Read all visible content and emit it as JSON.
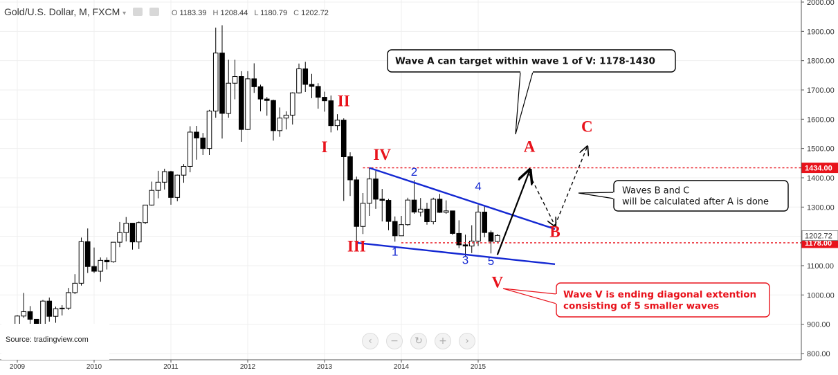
{
  "header": {
    "symbol": "Gold/U.S. Dollar, M, FXCM",
    "open_label": "O",
    "open": "1183.39",
    "high_label": "H",
    "high": "1208.44",
    "low_label": "L",
    "low": "1180.79",
    "close_label": "C",
    "close": "1202.72"
  },
  "source": "Source: tradingview.com",
  "nav_buttons": [
    "chevron-left-icon",
    "zoom-out-icon",
    "reset-icon",
    "zoom-in-icon",
    "chevron-right-icon"
  ],
  "colors": {
    "up": "#ffffff",
    "down": "#000000",
    "trendline": "#1428d2",
    "level": "#e8121b",
    "wave_label": "#e8121b",
    "sub_wave_label": "#1428d2"
  },
  "chart_data": {
    "type": "candlestick",
    "xlabel": "",
    "ylabel": "",
    "xlim": [
      "2009-01",
      "2016-10"
    ],
    "ylim": [
      760,
      2010
    ],
    "x_ticks": [
      "2009",
      "2010",
      "2011",
      "2012",
      "2013",
      "2014",
      "2015"
    ],
    "y_ticks": [
      "2000.00",
      "1900.00",
      "1800.00",
      "1700.00",
      "1600.00",
      "1500.00",
      "1400.00",
      "1300.00",
      "1200.00",
      "1100.00",
      "1000.00",
      "900.00",
      "800.00"
    ],
    "price_tags": [
      {
        "value": 1434,
        "label": "1434.00",
        "style": "red"
      },
      {
        "value": 1178,
        "label": "1178.00",
        "style": "red"
      },
      {
        "value": 1202.72,
        "label": "1202.72",
        "style": "plain"
      }
    ],
    "candles": [
      {
        "date": "2009-01",
        "o": 884,
        "h": 931,
        "l": 800,
        "c": 928
      },
      {
        "date": "2009-02",
        "o": 928,
        "h": 1007,
        "l": 922,
        "c": 943
      },
      {
        "date": "2009-03",
        "o": 943,
        "h": 962,
        "l": 865,
        "c": 917
      },
      {
        "date": "2009-04",
        "o": 917,
        "h": 918,
        "l": 863,
        "c": 885
      },
      {
        "date": "2009-05",
        "o": 885,
        "h": 983,
        "l": 881,
        "c": 979
      },
      {
        "date": "2009-06",
        "o": 979,
        "h": 991,
        "l": 909,
        "c": 927
      },
      {
        "date": "2009-07",
        "o": 927,
        "h": 960,
        "l": 905,
        "c": 953
      },
      {
        "date": "2009-08",
        "o": 953,
        "h": 965,
        "l": 930,
        "c": 955
      },
      {
        "date": "2009-09",
        "o": 955,
        "h": 1024,
        "l": 949,
        "c": 1008
      },
      {
        "date": "2009-10",
        "o": 1008,
        "h": 1071,
        "l": 1003,
        "c": 1040
      },
      {
        "date": "2009-11",
        "o": 1040,
        "h": 1196,
        "l": 1032,
        "c": 1182
      },
      {
        "date": "2009-12",
        "o": 1182,
        "h": 1227,
        "l": 1075,
        "c": 1097
      },
      {
        "date": "2010-01",
        "o": 1097,
        "h": 1162,
        "l": 1075,
        "c": 1081
      },
      {
        "date": "2010-02",
        "o": 1081,
        "h": 1128,
        "l": 1045,
        "c": 1118
      },
      {
        "date": "2010-03",
        "o": 1118,
        "h": 1128,
        "l": 1087,
        "c": 1113
      },
      {
        "date": "2010-04",
        "o": 1113,
        "h": 1180,
        "l": 1110,
        "c": 1180
      },
      {
        "date": "2010-05",
        "o": 1180,
        "h": 1249,
        "l": 1163,
        "c": 1213
      },
      {
        "date": "2010-06",
        "o": 1213,
        "h": 1266,
        "l": 1183,
        "c": 1245
      },
      {
        "date": "2010-07",
        "o": 1245,
        "h": 1245,
        "l": 1155,
        "c": 1181
      },
      {
        "date": "2010-08",
        "o": 1181,
        "h": 1251,
        "l": 1157,
        "c": 1247
      },
      {
        "date": "2010-09",
        "o": 1247,
        "h": 1307,
        "l": 1242,
        "c": 1307
      },
      {
        "date": "2010-10",
        "o": 1307,
        "h": 1387,
        "l": 1305,
        "c": 1357
      },
      {
        "date": "2010-11",
        "o": 1357,
        "h": 1424,
        "l": 1330,
        "c": 1385
      },
      {
        "date": "2010-12",
        "o": 1385,
        "h": 1431,
        "l": 1360,
        "c": 1421
      },
      {
        "date": "2011-01",
        "o": 1421,
        "h": 1424,
        "l": 1308,
        "c": 1333
      },
      {
        "date": "2011-02",
        "o": 1333,
        "h": 1411,
        "l": 1320,
        "c": 1409
      },
      {
        "date": "2011-03",
        "o": 1409,
        "h": 1447,
        "l": 1383,
        "c": 1439
      },
      {
        "date": "2011-04",
        "o": 1439,
        "h": 1576,
        "l": 1419,
        "c": 1556
      },
      {
        "date": "2011-05",
        "o": 1556,
        "h": 1577,
        "l": 1462,
        "c": 1536
      },
      {
        "date": "2011-06",
        "o": 1536,
        "h": 1553,
        "l": 1478,
        "c": 1500
      },
      {
        "date": "2011-07",
        "o": 1500,
        "h": 1632,
        "l": 1478,
        "c": 1628
      },
      {
        "date": "2011-08",
        "o": 1628,
        "h": 1913,
        "l": 1605,
        "c": 1826
      },
      {
        "date": "2011-09",
        "o": 1826,
        "h": 1921,
        "l": 1534,
        "c": 1620
      },
      {
        "date": "2011-10",
        "o": 1620,
        "h": 1803,
        "l": 1605,
        "c": 1723
      },
      {
        "date": "2011-11",
        "o": 1723,
        "h": 1803,
        "l": 1668,
        "c": 1746
      },
      {
        "date": "2011-12",
        "o": 1746,
        "h": 1764,
        "l": 1523,
        "c": 1565
      },
      {
        "date": "2012-01",
        "o": 1565,
        "h": 1764,
        "l": 1563,
        "c": 1738
      },
      {
        "date": "2012-02",
        "o": 1738,
        "h": 1791,
        "l": 1690,
        "c": 1711
      },
      {
        "date": "2012-03",
        "o": 1711,
        "h": 1718,
        "l": 1627,
        "c": 1669
      },
      {
        "date": "2012-04",
        "o": 1669,
        "h": 1676,
        "l": 1612,
        "c": 1664
      },
      {
        "date": "2012-05",
        "o": 1664,
        "h": 1667,
        "l": 1527,
        "c": 1561
      },
      {
        "date": "2012-06",
        "o": 1561,
        "h": 1640,
        "l": 1540,
        "c": 1604
      },
      {
        "date": "2012-07",
        "o": 1604,
        "h": 1627,
        "l": 1565,
        "c": 1614
      },
      {
        "date": "2012-08",
        "o": 1614,
        "h": 1692,
        "l": 1582,
        "c": 1690
      },
      {
        "date": "2012-09",
        "o": 1690,
        "h": 1790,
        "l": 1688,
        "c": 1772
      },
      {
        "date": "2012-10",
        "o": 1772,
        "h": 1796,
        "l": 1693,
        "c": 1719
      },
      {
        "date": "2012-11",
        "o": 1719,
        "h": 1755,
        "l": 1672,
        "c": 1712
      },
      {
        "date": "2012-12",
        "o": 1712,
        "h": 1723,
        "l": 1636,
        "c": 1675
      },
      {
        "date": "2013-01",
        "o": 1675,
        "h": 1694,
        "l": 1626,
        "c": 1663
      },
      {
        "date": "2013-02",
        "o": 1663,
        "h": 1681,
        "l": 1555,
        "c": 1578
      },
      {
        "date": "2013-03",
        "o": 1578,
        "h": 1617,
        "l": 1562,
        "c": 1597
      },
      {
        "date": "2013-04",
        "o": 1597,
        "h": 1603,
        "l": 1321,
        "c": 1472
      },
      {
        "date": "2013-05",
        "o": 1472,
        "h": 1487,
        "l": 1338,
        "c": 1393
      },
      {
        "date": "2013-06",
        "o": 1393,
        "h": 1404,
        "l": 1180,
        "c": 1234
      },
      {
        "date": "2013-07",
        "o": 1234,
        "h": 1348,
        "l": 1208,
        "c": 1313
      },
      {
        "date": "2013-08",
        "o": 1313,
        "h": 1434,
        "l": 1270,
        "c": 1396
      },
      {
        "date": "2013-09",
        "o": 1396,
        "h": 1424,
        "l": 1294,
        "c": 1327
      },
      {
        "date": "2013-10",
        "o": 1327,
        "h": 1362,
        "l": 1251,
        "c": 1323
      },
      {
        "date": "2013-11",
        "o": 1323,
        "h": 1328,
        "l": 1221,
        "c": 1251
      },
      {
        "date": "2013-12",
        "o": 1251,
        "h": 1268,
        "l": 1182,
        "c": 1202
      },
      {
        "date": "2014-01",
        "o": 1202,
        "h": 1270,
        "l": 1202,
        "c": 1240
      },
      {
        "date": "2014-02",
        "o": 1240,
        "h": 1332,
        "l": 1236,
        "c": 1324
      },
      {
        "date": "2014-03",
        "o": 1324,
        "h": 1392,
        "l": 1277,
        "c": 1283
      },
      {
        "date": "2014-04",
        "o": 1283,
        "h": 1331,
        "l": 1268,
        "c": 1293
      },
      {
        "date": "2014-05",
        "o": 1293,
        "h": 1315,
        "l": 1240,
        "c": 1250
      },
      {
        "date": "2014-06",
        "o": 1250,
        "h": 1332,
        "l": 1241,
        "c": 1327
      },
      {
        "date": "2014-07",
        "o": 1327,
        "h": 1345,
        "l": 1280,
        "c": 1282
      },
      {
        "date": "2014-08",
        "o": 1282,
        "h": 1323,
        "l": 1277,
        "c": 1287
      },
      {
        "date": "2014-09",
        "o": 1287,
        "h": 1287,
        "l": 1205,
        "c": 1210
      },
      {
        "date": "2014-10",
        "o": 1210,
        "h": 1255,
        "l": 1160,
        "c": 1171
      },
      {
        "date": "2014-11",
        "o": 1171,
        "h": 1206,
        "l": 1131,
        "c": 1167
      },
      {
        "date": "2014-12",
        "o": 1167,
        "h": 1238,
        "l": 1143,
        "c": 1184
      },
      {
        "date": "2015-01",
        "o": 1184,
        "h": 1307,
        "l": 1167,
        "c": 1283
      },
      {
        "date": "2015-02",
        "o": 1283,
        "h": 1306,
        "l": 1197,
        "c": 1213
      },
      {
        "date": "2015-03",
        "o": 1213,
        "h": 1220,
        "l": 1142,
        "c": 1183
      },
      {
        "date": "2015-04",
        "o": 1183,
        "h": 1208,
        "l": 1181,
        "c": 1203
      }
    ],
    "trendlines": [
      {
        "from": [
          "2013-08",
          1434
        ],
        "to": [
          "2016-01",
          1225
        ],
        "color": "trendline",
        "style": "solid"
      },
      {
        "from": [
          "2013-06",
          1178
        ],
        "to": [
          "2016-01",
          1105
        ],
        "color": "trendline",
        "style": "solid"
      }
    ],
    "horizontal_levels": [
      {
        "value": 1434,
        "from": "2013-07"
      },
      {
        "value": 1178,
        "from": "2014-01"
      }
    ],
    "projection_paths": [
      {
        "points": [
          [
            "2015-04",
            1137
          ],
          [
            "2015-09",
            1422
          ]
        ],
        "style": "solid",
        "arrow": true
      },
      {
        "points": [
          [
            "2015-09",
            1412
          ],
          [
            "2016-01",
            1237
          ]
        ],
        "style": "dashed",
        "arrow": true
      },
      {
        "points": [
          [
            "2016-01",
            1237
          ],
          [
            "2016-06",
            1504
          ]
        ],
        "style": "dashed",
        "arrow": true
      }
    ],
    "wave_labels": [
      {
        "text": "I",
        "x": "2013-01",
        "y": 1487,
        "color": "wave_label"
      },
      {
        "text": "II",
        "x": "2013-04",
        "y": 1644,
        "color": "wave_label"
      },
      {
        "text": "III",
        "x": "2013-06",
        "y": 1148,
        "color": "wave_label"
      },
      {
        "text": "IV",
        "x": "2013-10",
        "y": 1461,
        "color": "wave_label"
      },
      {
        "text": "V",
        "x": "2015-04",
        "y": 1026,
        "color": "wave_label"
      },
      {
        "text": "A",
        "x": "2015-09",
        "y": 1488,
        "color": "wave_label"
      },
      {
        "text": "B",
        "x": "2016-01",
        "y": 1198,
        "color": "wave_label"
      },
      {
        "text": "C",
        "x": "2016-06",
        "y": 1557,
        "color": "wave_label"
      },
      {
        "text": "1",
        "x": "2013-12",
        "y": 1134,
        "color": "sub_wave_label"
      },
      {
        "text": "2",
        "x": "2014-03",
        "y": 1407,
        "color": "sub_wave_label"
      },
      {
        "text": "3",
        "x": "2014-11",
        "y": 1106,
        "color": "sub_wave_label"
      },
      {
        "text": "4",
        "x": "2015-01",
        "y": 1357,
        "color": "sub_wave_label"
      },
      {
        "text": "5",
        "x": "2015-03",
        "y": 1102,
        "color": "sub_wave_label"
      }
    ],
    "annotations": [
      {
        "text": "Wave A can target within wave 1 of V: 1178-1430",
        "border": "black",
        "pointer_to": "A"
      },
      {
        "text": "Waves B and C\nwill be calculated after A is done",
        "border": "black",
        "pointer_to": "C"
      },
      {
        "text": "Wave V is ending diagonal extention\nconsisting of 5 smaller waves",
        "border": "red",
        "pointer_to": "V"
      }
    ]
  }
}
